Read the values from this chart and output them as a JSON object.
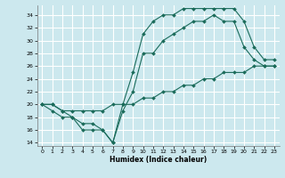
{
  "xlabel": "Humidex (Indice chaleur)",
  "bg_color": "#cce8ee",
  "line_color": "#1a6b5a",
  "grid_color": "#ffffff",
  "xlim": [
    -0.5,
    23.5
  ],
  "ylim": [
    13.5,
    35.5
  ],
  "xticks": [
    0,
    1,
    2,
    3,
    4,
    5,
    6,
    7,
    8,
    9,
    10,
    11,
    12,
    13,
    14,
    15,
    16,
    17,
    18,
    19,
    20,
    21,
    22,
    23
  ],
  "yticks": [
    14,
    16,
    18,
    20,
    22,
    24,
    26,
    28,
    30,
    32,
    34
  ],
  "line1_x": [
    0,
    1,
    2,
    3,
    4,
    5,
    6,
    7,
    8,
    9,
    10,
    11,
    12,
    13,
    14,
    15,
    16,
    17,
    18,
    19,
    20,
    21,
    22,
    23
  ],
  "line1_y": [
    20,
    20,
    19,
    18,
    16,
    16,
    16,
    14,
    20,
    25,
    31,
    33,
    34,
    34,
    35,
    35,
    35,
    35,
    35,
    35,
    33,
    29,
    27,
    27
  ],
  "line2_x": [
    0,
    1,
    2,
    3,
    4,
    5,
    6,
    7,
    8,
    9,
    10,
    11,
    12,
    13,
    14,
    15,
    16,
    17,
    18,
    19,
    20,
    21,
    22,
    23
  ],
  "line2_y": [
    20,
    19,
    18,
    18,
    17,
    17,
    16,
    14,
    19,
    22,
    28,
    28,
    30,
    31,
    32,
    33,
    33,
    34,
    33,
    33,
    29,
    27,
    26,
    26
  ],
  "line3_x": [
    0,
    1,
    2,
    3,
    4,
    5,
    6,
    7,
    8,
    9,
    10,
    11,
    12,
    13,
    14,
    15,
    16,
    17,
    18,
    19,
    20,
    21,
    22,
    23
  ],
  "line3_y": [
    20,
    20,
    19,
    19,
    19,
    19,
    19,
    20,
    20,
    20,
    21,
    21,
    22,
    22,
    23,
    23,
    24,
    24,
    25,
    25,
    25,
    26,
    26,
    26
  ]
}
